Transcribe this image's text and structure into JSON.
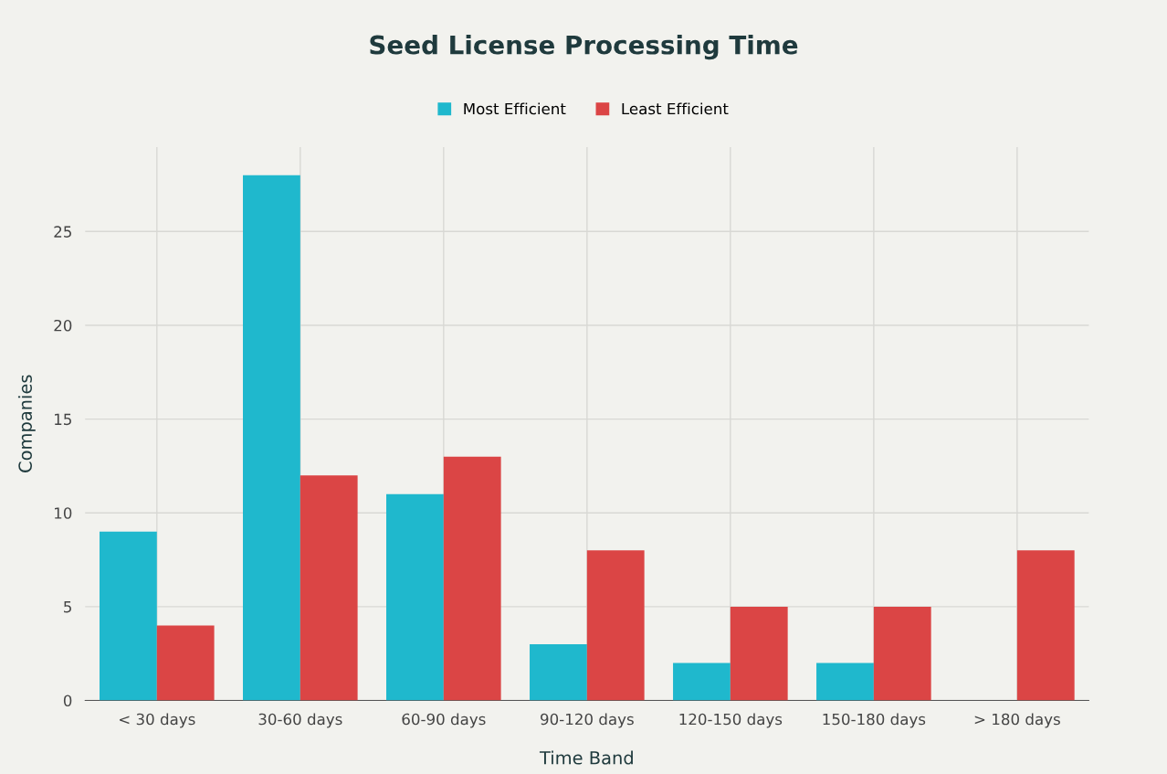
{
  "chart_data": {
    "type": "bar",
    "title": "Seed License Processing Time",
    "xlabel": "Time Band",
    "ylabel": "Companies",
    "categories": [
      "< 30 days",
      "30-60 days",
      "60-90 days",
      "90-120 days",
      "120-150 days",
      "150-180 days",
      "> 180 days"
    ],
    "series": [
      {
        "name": "Most Efficient",
        "color": "#1fb8cd",
        "values": [
          9,
          28,
          11,
          3,
          2,
          2,
          0
        ]
      },
      {
        "name": "Least Efficient",
        "color": "#db4545",
        "values": [
          4,
          12,
          13,
          8,
          5,
          5,
          8
        ]
      }
    ],
    "ylim": [
      0,
      29.5
    ],
    "yticks": [
      0,
      5,
      10,
      15,
      20,
      25
    ],
    "grid": true,
    "legend": "top"
  }
}
